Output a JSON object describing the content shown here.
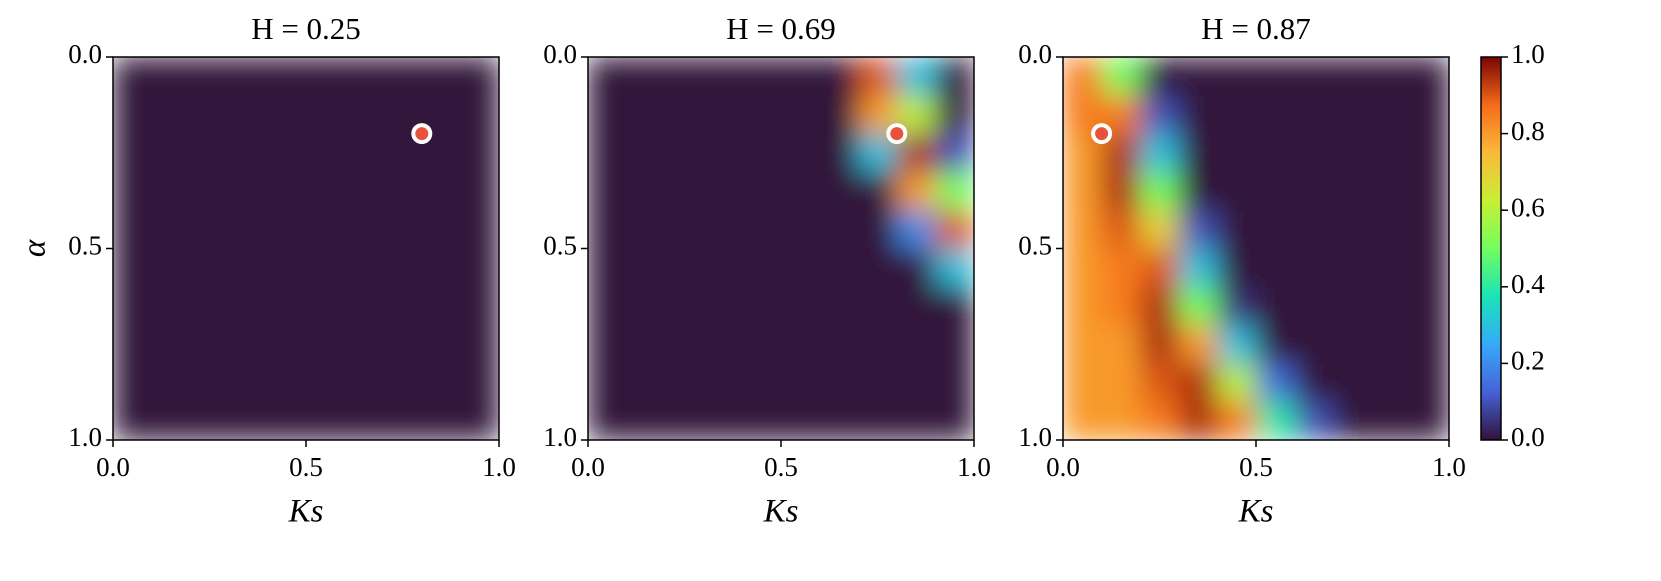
{
  "chart_data": [
    {
      "type": "heatmap",
      "title": "H = 0.25",
      "xlabel": "Ks",
      "ylabel": "α",
      "colormap": "turbo",
      "xlim": [
        0,
        1
      ],
      "ylim": [
        1,
        0
      ],
      "xticks": [
        {
          "value": 0,
          "label": "0.0"
        },
        0.5,
        {
          "value": 1,
          "label": "1.0"
        }
      ],
      "yticks": [
        {
          "value": 0,
          "label": "0.0"
        },
        0.5,
        {
          "value": 1,
          "label": "1.0"
        }
      ],
      "marker": {
        "x": 0.8,
        "y": 0.2
      },
      "z": [
        [
          0,
          0,
          0,
          0,
          0,
          0,
          0,
          0,
          0,
          0
        ],
        [
          0,
          0,
          0,
          0,
          0,
          0,
          0,
          0,
          0,
          0
        ],
        [
          0,
          0,
          0,
          0,
          0,
          0,
          0,
          0,
          0,
          0
        ],
        [
          0,
          0,
          0,
          0,
          0,
          0,
          0,
          0,
          0,
          0
        ],
        [
          0,
          0,
          0,
          0,
          0,
          0,
          0,
          0,
          0,
          0
        ],
        [
          0,
          0,
          0,
          0,
          0,
          0,
          0,
          0,
          0,
          0
        ],
        [
          0,
          0,
          0,
          0,
          0,
          0,
          0,
          0,
          0,
          0
        ],
        [
          0,
          0,
          0,
          0,
          0,
          0,
          0,
          0,
          0,
          0
        ],
        [
          0,
          0,
          0,
          0,
          0,
          0,
          0,
          0,
          0,
          0
        ],
        [
          0,
          0,
          0,
          0,
          0,
          0,
          0,
          0,
          0,
          0
        ]
      ]
    },
    {
      "type": "heatmap",
      "title": "H = 0.69",
      "xlabel": "Ks",
      "colormap": "turbo",
      "xlim": [
        0,
        1
      ],
      "ylim": [
        1,
        0
      ],
      "xticks": [
        {
          "value": 0,
          "label": "0.0"
        },
        0.5,
        {
          "value": 1,
          "label": "1.0"
        }
      ],
      "yticks": [
        {
          "value": 0,
          "label": "0.0"
        },
        0.5,
        {
          "value": 1,
          "label": "1.0"
        }
      ],
      "marker": {
        "x": 0.8,
        "y": 0.2
      },
      "z": [
        [
          0,
          0,
          0,
          0,
          0,
          0,
          0,
          0.9,
          0.3,
          0
        ],
        [
          0,
          0,
          0,
          0,
          0,
          0,
          0,
          0.8,
          0.6,
          0
        ],
        [
          0,
          0,
          0,
          0,
          0,
          0,
          0,
          0.3,
          0.95,
          0.1
        ],
        [
          0,
          0,
          0,
          0,
          0,
          0,
          0,
          0,
          0.8,
          0.5
        ],
        [
          0,
          0,
          0,
          0,
          0,
          0,
          0,
          0,
          0.2,
          0.9
        ],
        [
          0,
          0,
          0,
          0,
          0,
          0,
          0,
          0,
          0,
          0.3
        ],
        [
          0,
          0,
          0,
          0,
          0,
          0,
          0,
          0,
          0,
          0
        ],
        [
          0,
          0,
          0,
          0,
          0,
          0,
          0,
          0,
          0,
          0
        ],
        [
          0,
          0,
          0,
          0,
          0,
          0,
          0,
          0,
          0,
          0
        ],
        [
          0,
          0,
          0,
          0,
          0,
          0,
          0,
          0,
          0,
          0
        ]
      ]
    },
    {
      "type": "heatmap",
      "title": "H = 0.87",
      "xlabel": "Ks",
      "colormap": "turbo",
      "xlim": [
        0,
        1
      ],
      "ylim": [
        1,
        0
      ],
      "xticks": [
        {
          "value": 0,
          "label": "0.0"
        },
        0.5,
        {
          "value": 1,
          "label": "1.0"
        }
      ],
      "yticks": [
        {
          "value": 0,
          "label": "0.0"
        },
        0.5,
        {
          "value": 1,
          "label": "1.0"
        }
      ],
      "marker": {
        "x": 0.1,
        "y": 0.2
      },
      "z": [
        [
          0.85,
          0.5,
          0,
          0,
          0,
          0,
          0,
          0,
          0,
          0
        ],
        [
          0.85,
          0.85,
          0.1,
          0,
          0,
          0,
          0,
          0,
          0,
          0
        ],
        [
          0.8,
          0.95,
          0.3,
          0,
          0,
          0,
          0,
          0,
          0,
          0
        ],
        [
          0.8,
          0.95,
          0.5,
          0,
          0,
          0,
          0,
          0,
          0,
          0
        ],
        [
          0.8,
          0.9,
          0.7,
          0.1,
          0,
          0,
          0,
          0,
          0,
          0
        ],
        [
          0.8,
          0.85,
          0.9,
          0.3,
          0,
          0,
          0,
          0,
          0,
          0
        ],
        [
          0.8,
          0.85,
          0.95,
          0.5,
          0.05,
          0,
          0,
          0,
          0,
          0
        ],
        [
          0.8,
          0.8,
          0.95,
          0.8,
          0.3,
          0,
          0,
          0,
          0,
          0
        ],
        [
          0.8,
          0.8,
          0.9,
          0.95,
          0.6,
          0.15,
          0,
          0,
          0,
          0
        ],
        [
          0.8,
          0.8,
          0.85,
          0.95,
          0.85,
          0.4,
          0.1,
          0,
          0,
          0
        ]
      ],
      "colorbar": {
        "lim": [
          0,
          1
        ],
        "ticks": [
          {
            "value": 0,
            "label": "0.0"
          },
          0.2,
          0.4,
          0.6,
          0.8,
          {
            "value": 1,
            "label": "1.0"
          }
        ]
      }
    }
  ]
}
